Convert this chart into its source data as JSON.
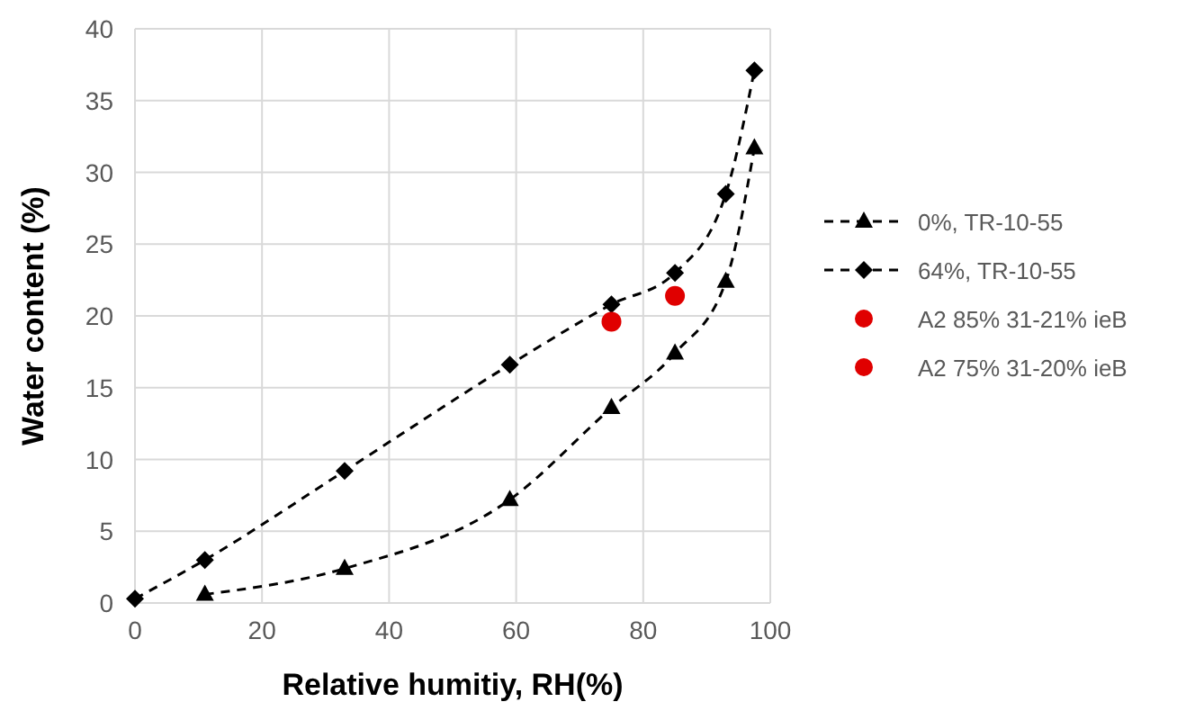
{
  "chart_data": {
    "type": "line",
    "xlabel": "Relative humitiy, RH(%)",
    "ylabel": "Water content (%)",
    "xlim": [
      0,
      100
    ],
    "xticks": [
      0,
      20,
      40,
      60,
      80,
      100
    ],
    "ylim": [
      0,
      40
    ],
    "yticks": [
      0,
      5,
      10,
      15,
      20,
      25,
      30,
      35,
      40
    ],
    "grid": true,
    "legend": "right",
    "series": [
      {
        "name": "0%, TR-10-55",
        "color": "#000000",
        "marker": "triangle",
        "line_style": "dashed",
        "x": [
          11,
          33,
          59,
          75,
          85,
          93,
          97.5
        ],
        "values": [
          0.6,
          2.4,
          7.2,
          13.6,
          17.4,
          22.4,
          31.7
        ]
      },
      {
        "name": "64%, TR-10-55",
        "color": "#000000",
        "marker": "diamond",
        "line_style": "dashed",
        "x": [
          0,
          11,
          33,
          59,
          75,
          85,
          93,
          97.5
        ],
        "values": [
          0.3,
          3.0,
          9.2,
          16.6,
          20.8,
          23.0,
          28.5,
          37.1
        ]
      },
      {
        "name": "A2 85% 31-21% ieB",
        "type": "scatter",
        "color": "#e00000",
        "marker": "circle",
        "x": [
          85
        ],
        "values": [
          21.4
        ]
      },
      {
        "name": "A2 75% 31-20% ieB",
        "type": "scatter",
        "color": "#e00000",
        "marker": "circle",
        "x": [
          75
        ],
        "values": [
          19.6
        ]
      }
    ]
  }
}
